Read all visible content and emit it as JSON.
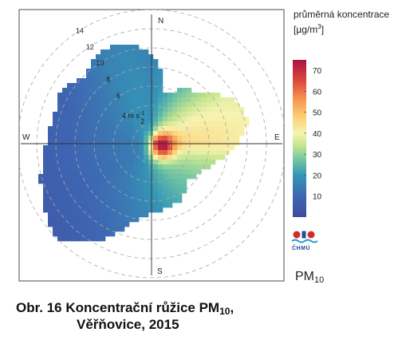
{
  "chart_data": {
    "type": "heatmap",
    "subtype": "polar-pollution-rose",
    "directions": {
      "north": "N",
      "east": "E",
      "south": "S",
      "west": "W"
    },
    "radial_axis": {
      "unit_label": "4 m s",
      "unit_superscript": "-1",
      "tick_labels": [
        "2",
        "6",
        "8",
        "10",
        "12",
        "14"
      ],
      "ticks": [
        2,
        4,
        6,
        8,
        10,
        12,
        14
      ],
      "max": 16
    },
    "colorbar": {
      "title_line1": "průměrná koncentrace",
      "title_line2": "[µg/m",
      "title_sup": "3",
      "title_close": "]",
      "range": [
        0,
        75
      ],
      "tick_labels": [
        "10",
        "20",
        "30",
        "40",
        "50",
        "60",
        "70"
      ],
      "ticks": [
        10,
        20,
        30,
        40,
        50,
        60,
        70
      ]
    },
    "pollutant_label": "PM",
    "pollutant_sub": "10",
    "logo_text": "ČHMÚ",
    "caption_line1_prefix": "Obr. 16  Koncentrační růžice PM",
    "caption_line1_sub": "10",
    "caption_line1_suffix": ",",
    "caption_line2": "Věřňovice, 2015",
    "sectors": [
      {
        "deg": 0,
        "r": 9.5,
        "c_in": 20,
        "c_out": 16
      },
      {
        "deg": 15,
        "r": 5.5,
        "c_in": 28,
        "c_out": 22
      },
      {
        "deg": 30,
        "r": 6.5,
        "c_in": 34,
        "c_out": 27
      },
      {
        "deg": 45,
        "r": 7.5,
        "c_in": 38,
        "c_out": 32
      },
      {
        "deg": 60,
        "r": 9.5,
        "c_in": 42,
        "c_out": 38
      },
      {
        "deg": 75,
        "r": 10.5,
        "c_in": 46,
        "c_out": 40
      },
      {
        "deg": 90,
        "r": 9.0,
        "c_in": 48,
        "c_out": 42
      },
      {
        "deg": 105,
        "r": 7.0,
        "c_in": 40,
        "c_out": 33
      },
      {
        "deg": 120,
        "r": 6.0,
        "c_in": 34,
        "c_out": 30
      },
      {
        "deg": 135,
        "r": 5.5,
        "c_in": 32,
        "c_out": 27
      },
      {
        "deg": 150,
        "r": 6.5,
        "c_in": 30,
        "c_out": 24
      },
      {
        "deg": 165,
        "r": 7.0,
        "c_in": 27,
        "c_out": 21
      },
      {
        "deg": 180,
        "r": 7.0,
        "c_in": 24,
        "c_out": 18
      },
      {
        "deg": 195,
        "r": 8.5,
        "c_in": 21,
        "c_out": 14
      },
      {
        "deg": 210,
        "r": 12.0,
        "c_in": 19,
        "c_out": 9
      },
      {
        "deg": 225,
        "r": 14.0,
        "c_in": 17,
        "c_out": 6
      },
      {
        "deg": 240,
        "r": 13.0,
        "c_in": 16,
        "c_out": 6
      },
      {
        "deg": 255,
        "r": 12.0,
        "c_in": 16,
        "c_out": 7
      },
      {
        "deg": 270,
        "r": 11.0,
        "c_in": 16,
        "c_out": 8
      },
      {
        "deg": 285,
        "r": 10.5,
        "c_in": 17,
        "c_out": 8
      },
      {
        "deg": 300,
        "r": 11.0,
        "c_in": 18,
        "c_out": 9
      },
      {
        "deg": 315,
        "r": 10.0,
        "c_in": 19,
        "c_out": 12
      },
      {
        "deg": 330,
        "r": 11.0,
        "c_in": 20,
        "c_out": 15
      },
      {
        "deg": 345,
        "r": 11.0,
        "c_in": 20,
        "c_out": 17
      }
    ],
    "hotspot": {
      "deg": 100,
      "r": 1.2,
      "peak": 75,
      "bg": 45,
      "sigma": 0.9
    }
  }
}
